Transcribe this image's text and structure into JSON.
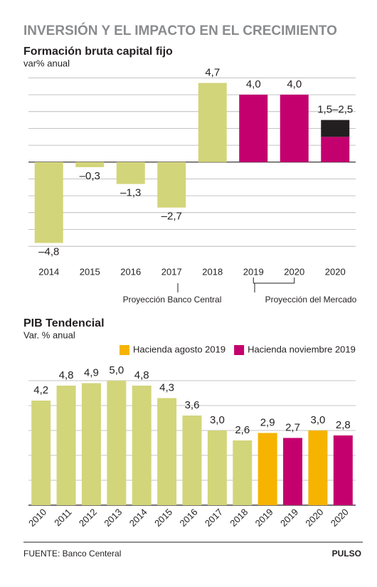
{
  "title": "INVERSIÓN Y EL IMPACTO EN EL CRECIMIENTO",
  "chart_data": [
    {
      "type": "bar",
      "title": "Formación bruta capital fijo",
      "subtitle": "var% anual",
      "categories": [
        "2014",
        "2015",
        "2016",
        "2017",
        "2018",
        "2019",
        "2020",
        "2020"
      ],
      "values": [
        -4.8,
        -0.3,
        -1.3,
        -2.7,
        4.7,
        4.0,
        4.0,
        1.5
      ],
      "range_high": [
        null,
        null,
        null,
        null,
        null,
        null,
        null,
        2.5
      ],
      "value_labels": [
        "–4,8",
        "–0,3",
        "–1,3",
        "–2,7",
        "4,7",
        "4,0",
        "4,0",
        "1,5–2,5"
      ],
      "colors": [
        "#d3d57a",
        "#d3d57a",
        "#d3d57a",
        "#d3d57a",
        "#d3d57a",
        "#c4006f",
        "#c4006f",
        "#c4006f"
      ],
      "range_color": "#231f20",
      "ylim": [
        -5.5,
        5.4
      ],
      "grid_values": [
        -5,
        -4,
        -3,
        -2,
        -1,
        0,
        1,
        2,
        3,
        4,
        5
      ],
      "grid": true,
      "annotations": [
        "Proyección Banco Central",
        "Proyección del Mercado"
      ]
    },
    {
      "type": "bar",
      "title": "PIB Tendencial",
      "subtitle": "Var. % anual",
      "categories": [
        "2010",
        "2011",
        "2012",
        "2013",
        "2014",
        "2015",
        "2016",
        "2017",
        "2018",
        "2019",
        "2019",
        "2020",
        "2020"
      ],
      "values": [
        4.2,
        4.8,
        4.9,
        5.0,
        4.8,
        4.3,
        3.6,
        3.0,
        2.6,
        2.9,
        2.7,
        3.0,
        2.8
      ],
      "value_labels": [
        "4,2",
        "4,8",
        "4,9",
        "5,0",
        "4,8",
        "4,3",
        "3,6",
        "3,0",
        "2,6",
        "2,9",
        "2,7",
        "3,0",
        "2,8"
      ],
      "colors": [
        "#d3d57a",
        "#d3d57a",
        "#d3d57a",
        "#d3d57a",
        "#d3d57a",
        "#d3d57a",
        "#d3d57a",
        "#d3d57a",
        "#d3d57a",
        "#f6b400",
        "#c4006f",
        "#f6b400",
        "#c4006f"
      ],
      "legend": [
        {
          "name": "Hacienda agosto 2019",
          "color": "#f6b400"
        },
        {
          "name": "Hacienda noviembre 2019",
          "color": "#c4006f"
        }
      ],
      "ylim": [
        0,
        6
      ],
      "grid_values": [
        0,
        1,
        2,
        3,
        4,
        5
      ],
      "grid": true
    }
  ],
  "footer": {
    "source": "FUENTE: Banco Centeral",
    "brand": "PULSO"
  }
}
